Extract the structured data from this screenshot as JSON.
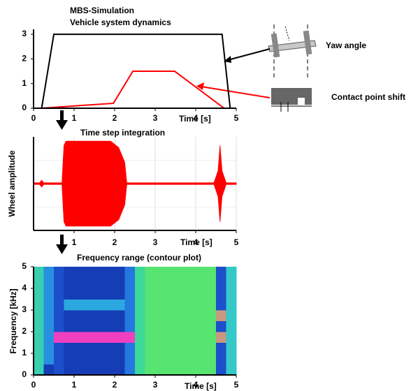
{
  "chart_data": [
    {
      "type": "line",
      "title": "MBS-Simulation",
      "subtitle": "Vehicle system dynamics",
      "x_label": "Time [s]",
      "xlim": [
        0,
        5
      ],
      "xticks": [
        0,
        1,
        2,
        3,
        4,
        5
      ],
      "ylim": [
        0,
        3.2
      ],
      "yticks": [
        0,
        1,
        2,
        3
      ],
      "series": [
        {
          "name": "Yaw angle",
          "color": "#000000",
          "x": [
            0.2,
            0.5,
            4.65,
            4.85
          ],
          "values": [
            0,
            3,
            3,
            0
          ]
        },
        {
          "name": "Contact point shift",
          "color": "#ff0000",
          "x": [
            0.2,
            1.07,
            1.97,
            2.45,
            3.48,
            4.7
          ],
          "values": [
            0,
            0.1,
            0.2,
            1.5,
            1.5,
            0
          ]
        }
      ]
    },
    {
      "type": "area",
      "title": "Time step integration",
      "x_label": "Time [s]",
      "y_label": "Wheel amplitude",
      "xlim": [
        0,
        5
      ],
      "xticks": [
        1,
        2,
        3,
        4,
        5
      ],
      "ylim": [
        -1.1,
        1.1
      ],
      "grid": true,
      "color": "#ff0000",
      "x": [
        0,
        0.15,
        0.2,
        0.25,
        0.7,
        0.75,
        0.8,
        1.9,
        2.1,
        2.25,
        2.3,
        2.35,
        4.45,
        4.55,
        4.6,
        4.65,
        4.75,
        5
      ],
      "values": [
        0.02,
        0.02,
        0.08,
        0.02,
        0.02,
        0.9,
        1,
        1,
        0.85,
        0.5,
        0.02,
        0.02,
        0.02,
        0.3,
        0.9,
        0.3,
        0.02,
        0.02
      ]
    },
    {
      "type": "heatmap",
      "title": "Frequency range (contour plot)",
      "x_label": "Time [s]",
      "y_label": "Frequency [kHz]",
      "xlim": [
        0,
        5
      ],
      "xticks": [
        0,
        1,
        2,
        3,
        4,
        5
      ],
      "ylim": [
        0,
        5
      ],
      "yticks": [
        0,
        1,
        2,
        3,
        4,
        5
      ],
      "colormap": [
        "#0a1a8c",
        "#2060e0",
        "#30c0e0",
        "#40e080",
        "#a0f040",
        "#f040c0"
      ],
      "xbins": [
        0,
        0.25,
        0.5,
        0.75,
        1,
        1.25,
        1.5,
        1.75,
        2,
        2.25,
        2.5,
        2.75,
        3,
        3.25,
        3.5,
        3.75,
        4,
        4.25,
        4.5,
        4.75,
        5
      ],
      "ybins": [
        0,
        0.5,
        1,
        1.5,
        2,
        2.5,
        3,
        3.5,
        4,
        4.5,
        5
      ],
      "z": [
        [
          0.5,
          0.1,
          0.15,
          0.1,
          0.1,
          0.1,
          0.1,
          0.1,
          0.1,
          0.25,
          0.55,
          0.65,
          0.65,
          0.65,
          0.65,
          0.65,
          0.65,
          0.65,
          0.15,
          0.45
        ],
        [
          0.5,
          0.3,
          0.15,
          0.1,
          0.1,
          0.1,
          0.1,
          0.1,
          0.1,
          0.25,
          0.55,
          0.65,
          0.65,
          0.65,
          0.65,
          0.65,
          0.65,
          0.65,
          0.15,
          0.45
        ],
        [
          0.5,
          0.3,
          0.15,
          0.1,
          0.1,
          0.1,
          0.1,
          0.1,
          0.1,
          0.25,
          0.55,
          0.65,
          0.65,
          0.65,
          0.65,
          0.65,
          0.65,
          0.65,
          0.15,
          0.45
        ],
        [
          0.5,
          0.3,
          1,
          1,
          1,
          1,
          1,
          1,
          1,
          1,
          0.55,
          0.65,
          0.65,
          0.65,
          0.65,
          0.65,
          0.65,
          0.65,
          0.9,
          0.45
        ],
        [
          0.5,
          0.3,
          0.15,
          0.1,
          0.1,
          0.1,
          0.1,
          0.1,
          0.1,
          0.25,
          0.55,
          0.65,
          0.65,
          0.65,
          0.65,
          0.65,
          0.65,
          0.65,
          0.15,
          0.45
        ],
        [
          0.5,
          0.3,
          0.15,
          0.1,
          0.1,
          0.1,
          0.1,
          0.1,
          0.1,
          0.25,
          0.55,
          0.65,
          0.65,
          0.65,
          0.65,
          0.65,
          0.65,
          0.65,
          0.9,
          0.45
        ],
        [
          0.5,
          0.3,
          0.15,
          0.35,
          0.35,
          0.35,
          0.35,
          0.35,
          0.35,
          0.25,
          0.55,
          0.65,
          0.65,
          0.65,
          0.65,
          0.65,
          0.65,
          0.65,
          0.15,
          0.45
        ],
        [
          0.5,
          0.3,
          0.15,
          0.1,
          0.1,
          0.1,
          0.1,
          0.1,
          0.1,
          0.25,
          0.55,
          0.65,
          0.65,
          0.65,
          0.65,
          0.65,
          0.65,
          0.65,
          0.15,
          0.45
        ],
        [
          0.5,
          0.3,
          0.15,
          0.1,
          0.1,
          0.1,
          0.1,
          0.1,
          0.1,
          0.25,
          0.55,
          0.65,
          0.65,
          0.65,
          0.65,
          0.65,
          0.65,
          0.65,
          0.15,
          0.45
        ],
        [
          0.5,
          0.3,
          0.15,
          0.1,
          0.1,
          0.1,
          0.1,
          0.1,
          0.1,
          0.25,
          0.55,
          0.65,
          0.65,
          0.65,
          0.65,
          0.65,
          0.65,
          0.65,
          0.15,
          0.45
        ]
      ]
    }
  ]
}
